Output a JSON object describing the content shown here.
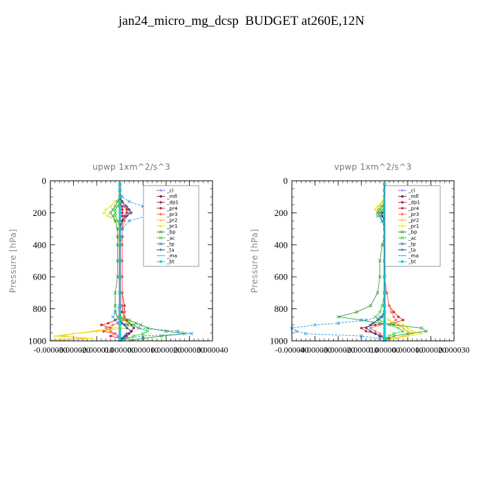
{
  "figure": {
    "title": "jan24_micro_mg_dcsp  BUDGET at260E,12N"
  },
  "chart_data": [
    {
      "type": "line",
      "title": "upwp   1xm^2/s^3",
      "xlabel": "",
      "ylabel": "Pressure [hPa]",
      "xlim": [
        -3e-05,
        4e-05
      ],
      "ylim": [
        1000,
        0
      ],
      "y_ticks": [
        0,
        200,
        400,
        600,
        800,
        1000
      ],
      "x_ticks": [
        "-0.000030",
        "-0.000020",
        "-0.000010",
        "0.000000",
        "0.000010",
        "0.000020",
        "0.000030",
        "0.000040"
      ],
      "legend_position": "top-right",
      "pressure": [
        20,
        60,
        100,
        130,
        160,
        180,
        200,
        220,
        250,
        300,
        350,
        400,
        500,
        600,
        700,
        780,
        820,
        850,
        870,
        890,
        900,
        920,
        940,
        955,
        970,
        985,
        995
      ],
      "series": [
        {
          "name": "_cl",
          "color": "#9b59d0",
          "values": [
            0,
            0,
            0,
            0,
            0,
            0,
            0,
            0,
            0,
            0,
            0,
            0,
            0,
            0,
            0,
            0,
            0,
            0,
            0,
            0,
            0,
            0,
            0,
            0,
            0,
            0,
            0
          ]
        },
        {
          "name": "_mfl",
          "color": "#7a1f66",
          "values": [
            0,
            0,
            0,
            0,
            0,
            0,
            0,
            0,
            0,
            0,
            0,
            0,
            0,
            0,
            0,
            0,
            0,
            0,
            0,
            0,
            0,
            0,
            0,
            0,
            0,
            0,
            0
          ]
        },
        {
          "name": "_dp1",
          "color": "#c2185b",
          "values": [
            0,
            0,
            0,
            0,
            1e-06,
            1e-06,
            1e-06,
            1e-06,
            1e-06,
            1e-06,
            1e-06,
            1e-06,
            1e-06,
            1e-06,
            1e-06,
            1e-06,
            1e-06,
            2e-06,
            3e-06,
            4e-06,
            5e-06,
            6e-06,
            5e-06,
            4e-06,
            3e-06,
            1e-06,
            0
          ]
        },
        {
          "name": "_pr4",
          "color": "#d62728",
          "values": [
            0,
            0,
            0,
            1e-06,
            2e-06,
            3e-06,
            3e-06,
            2e-06,
            1e-06,
            1e-06,
            1e-06,
            1e-06,
            1e-06,
            1e-06,
            1e-06,
            2e-06,
            2e-06,
            2e-06,
            -2e-06,
            -5e-06,
            -8e-06,
            -4e-06,
            -7e-06,
            -2e-06,
            -4e-06,
            0,
            0
          ]
        },
        {
          "name": "_pr3",
          "color": "#ff6b6b",
          "values": [
            0,
            0,
            0,
            1e-06,
            2e-06,
            4e-06,
            4e-06,
            3e-06,
            2e-06,
            1e-06,
            1e-06,
            1e-06,
            1e-06,
            1e-06,
            1e-06,
            1e-06,
            2e-06,
            2e-06,
            1e-06,
            -1e-06,
            -3e-06,
            -6e-06,
            -4e-06,
            -2e-06,
            -1e-06,
            0,
            0
          ]
        },
        {
          "name": "_pr2",
          "color": "#ffb000",
          "values": [
            0,
            0,
            0,
            0,
            0,
            0,
            0,
            0,
            0,
            0,
            0,
            0,
            0,
            0,
            0,
            0,
            0,
            1e-06,
            2e-06,
            3e-06,
            4e-06,
            3e-06,
            -1e-05,
            -2e-05,
            -2.5e-05,
            -1.5e-05,
            -3e-05
          ]
        },
        {
          "name": "_pr1",
          "color": "#f0e000",
          "values": [
            0,
            0,
            0,
            -2e-06,
            -4e-06,
            -6e-06,
            -7e-06,
            -5e-06,
            -2e-06,
            -1e-06,
            -1e-06,
            0,
            0,
            0,
            0,
            0,
            0,
            1e-06,
            2e-06,
            3e-06,
            4e-06,
            -3e-06,
            -1.2e-05,
            -2e-05,
            -2.8e-05,
            -1.2e-05,
            -2.5e-05
          ]
        },
        {
          "name": "_bp",
          "color": "#2ca02c",
          "values": [
            0,
            0,
            0,
            -1e-06,
            -2e-06,
            -3e-06,
            -4e-06,
            -3e-06,
            -2e-06,
            -1e-06,
            -1e-06,
            -1e-06,
            -1e-06,
            -1e-06,
            -2e-06,
            -2e-06,
            -2e-06,
            -1e-06,
            4e-06,
            7e-06,
            9e-06,
            1.2e-05,
            2e-05,
            2.8e-05,
            1.8e-05,
            1e-05,
            5e-06
          ]
        },
        {
          "name": "_ac",
          "color": "#33cc33",
          "values": [
            0,
            0,
            0,
            0,
            -1e-06,
            -2e-06,
            -2e-06,
            -2e-06,
            -1e-06,
            0,
            0,
            0,
            0,
            0,
            0,
            0,
            0,
            0,
            2e-06,
            4e-06,
            6e-06,
            8e-06,
            1.2e-05,
            1e-05,
            6e-06,
            3e-06,
            1e-06
          ]
        },
        {
          "name": "_tp",
          "color": "#1f8fd6",
          "values": [
            0,
            0,
            1e-06,
            4e-06,
            1e-05,
            1.4e-05,
            1.8e-05,
            1.2e-05,
            4e-06,
            1e-06,
            1e-06,
            0,
            0,
            0,
            0,
            0,
            -2e-06,
            -3e-06,
            -2e-06,
            0,
            3e-06,
            8e-06,
            2.5e-05,
            3.1e-05,
            1e-05,
            2e-06,
            0
          ]
        },
        {
          "name": "_ta",
          "color": "#0a3d91",
          "values": [
            0,
            0,
            0,
            1e-06,
            3e-06,
            4e-06,
            5e-06,
            3e-06,
            1e-06,
            0,
            0,
            0,
            0,
            0,
            0,
            0,
            0,
            0,
            0,
            1e-06,
            2e-06,
            3e-06,
            5e-06,
            3e-06,
            2e-06,
            1e-06,
            0
          ]
        },
        {
          "name": "_ma",
          "color": "#17becf",
          "values": [
            0,
            0,
            0,
            0,
            0,
            0,
            0,
            0,
            0,
            0,
            0,
            0,
            0,
            0,
            0,
            0,
            0,
            0,
            0,
            0,
            0,
            0,
            0,
            0,
            0,
            0,
            0
          ]
        },
        {
          "name": "_bt",
          "color": "#00d5e0",
          "values": [
            0,
            0,
            0,
            0,
            0,
            0,
            0,
            0,
            0,
            0,
            0,
            0,
            0,
            0,
            0,
            0,
            0,
            0,
            0,
            0,
            0,
            0,
            0,
            0,
            0,
            0,
            0
          ]
        }
      ]
    },
    {
      "type": "line",
      "title": "vpwp   1xm^2/s^3",
      "xlabel": "",
      "ylabel": "Pressure [hPa]",
      "xlim": [
        -4e-05,
        3e-05
      ],
      "ylim": [
        1000,
        0
      ],
      "y_ticks": [
        0,
        200,
        400,
        600,
        800,
        1000
      ],
      "x_ticks": [
        "-0.000040",
        "-0.000030",
        "-0.000020",
        "-0.000010",
        "0.000000",
        "0.000010",
        "0.000020",
        "0.000030"
      ],
      "legend_position": "top-right",
      "pressure": [
        20,
        60,
        100,
        130,
        160,
        180,
        200,
        220,
        250,
        300,
        350,
        400,
        500,
        600,
        700,
        780,
        820,
        850,
        870,
        890,
        900,
        920,
        940,
        955,
        970,
        985,
        995
      ],
      "series": [
        {
          "name": "_cl",
          "color": "#9b59d0",
          "values": [
            0,
            0,
            0,
            0,
            0,
            0,
            0,
            0,
            0,
            0,
            0,
            0,
            0,
            0,
            0,
            0,
            0,
            0,
            0,
            0,
            0,
            0,
            0,
            0,
            0,
            0,
            0
          ]
        },
        {
          "name": "_mfl",
          "color": "#7a1f66",
          "values": [
            0,
            0,
            0,
            0,
            0,
            0,
            0,
            0,
            0,
            0,
            0,
            0,
            0,
            0,
            0,
            0,
            0,
            0,
            0,
            0,
            0,
            0,
            0,
            0,
            0,
            0,
            0
          ]
        },
        {
          "name": "_dp1",
          "color": "#c2185b",
          "values": [
            0,
            0,
            0,
            0,
            0,
            0,
            0,
            0,
            0,
            0,
            0,
            0,
            0,
            0,
            0,
            0,
            0,
            0,
            0,
            0,
            0,
            0,
            0,
            0,
            0,
            0,
            0
          ]
        },
        {
          "name": "_pr4",
          "color": "#d62728",
          "values": [
            0,
            0,
            0,
            0,
            0,
            0,
            0,
            0,
            0,
            0,
            0,
            0,
            0,
            0,
            1e-06,
            2e-06,
            4e-06,
            6e-06,
            8e-06,
            4e-06,
            -4e-06,
            -1e-05,
            -8e-06,
            -4e-06,
            -2e-06,
            2e-06,
            0
          ]
        },
        {
          "name": "_pr3",
          "color": "#ff6b6b",
          "values": [
            0,
            0,
            0,
            0,
            0,
            0,
            0,
            0,
            0,
            0,
            0,
            0,
            0,
            0,
            1e-06,
            2e-06,
            3e-06,
            4e-06,
            5e-06,
            3e-06,
            -2e-06,
            -6e-06,
            -4e-06,
            -2e-06,
            -1e-06,
            1e-06,
            0
          ]
        },
        {
          "name": "_pr2",
          "color": "#ffb000",
          "values": [
            0,
            0,
            0,
            -1e-06,
            -2e-06,
            -3e-06,
            -2e-06,
            -1e-06,
            0,
            0,
            0,
            0,
            0,
            0,
            0,
            0,
            0,
            0,
            2e-06,
            4e-06,
            6e-06,
            8e-06,
            1e-05,
            1.2e-05,
            8e-06,
            4e-06,
            0
          ]
        },
        {
          "name": "_pr1",
          "color": "#f0e000",
          "values": [
            0,
            0,
            0,
            -1e-06,
            -3e-06,
            -4e-06,
            -3e-06,
            -1e-06,
            0,
            0,
            0,
            0,
            0,
            0,
            0,
            0,
            0,
            0,
            2e-06,
            4e-06,
            8e-06,
            1e-05,
            1.2e-05,
            1.6e-05,
            1e-05,
            5e-06,
            0
          ]
        },
        {
          "name": "_bp",
          "color": "#2ca02c",
          "values": [
            0,
            0,
            0,
            0,
            -1e-06,
            -2e-06,
            -3e-06,
            -2e-06,
            -1e-06,
            0,
            0,
            -1e-06,
            -2e-06,
            -2e-06,
            -3e-06,
            -6e-06,
            -1.2e-05,
            -2e-05,
            -1e-05,
            -2e-06,
            4e-06,
            1.6e-05,
            1.8e-05,
            1e-05,
            4e-06,
            2e-06,
            0
          ]
        },
        {
          "name": "_ac",
          "color": "#33cc33",
          "values": [
            0,
            0,
            0,
            0,
            0,
            -1e-06,
            -1e-06,
            -1e-06,
            0,
            0,
            0,
            0,
            0,
            0,
            0,
            -1e-06,
            -2e-06,
            -4e-06,
            -2e-06,
            0,
            2e-06,
            6e-06,
            8e-06,
            4e-06,
            2e-06,
            1e-06,
            0
          ]
        },
        {
          "name": "_tp",
          "color": "#1f8fd6",
          "values": [
            0,
            0,
            1e-06,
            3e-06,
            4e-06,
            2e-06,
            -2e-06,
            -3e-06,
            -1e-06,
            0,
            0,
            0,
            0,
            0,
            0,
            0,
            0,
            -2e-06,
            -8e-06,
            -2e-05,
            -3e-05,
            -4e-05,
            -3.8e-05,
            -3.4e-05,
            -1e-05,
            -2e-06,
            0
          ]
        },
        {
          "name": "_ta",
          "color": "#0a3d91",
          "values": [
            0,
            0,
            0,
            1e-06,
            2e-06,
            1e-06,
            -1e-06,
            -1e-06,
            0,
            0,
            0,
            0,
            0,
            0,
            0,
            0,
            0,
            -1e-06,
            -3e-06,
            -5e-06,
            -6e-06,
            -8e-06,
            -6e-06,
            -4e-06,
            -2e-06,
            0,
            0
          ]
        },
        {
          "name": "_ma",
          "color": "#17becf",
          "values": [
            0,
            0,
            0,
            0,
            0,
            0,
            0,
            0,
            0,
            0,
            0,
            0,
            0,
            0,
            0,
            0,
            0,
            0,
            0,
            0,
            0,
            0,
            0,
            0,
            0,
            0,
            0
          ]
        },
        {
          "name": "_bt",
          "color": "#00d5e0",
          "values": [
            0,
            0,
            0,
            0,
            0,
            0,
            0,
            0,
            0,
            0,
            0,
            0,
            0,
            0,
            0,
            0,
            0,
            0,
            0,
            0,
            0,
            0,
            0,
            0,
            0,
            0,
            0
          ]
        }
      ]
    }
  ]
}
